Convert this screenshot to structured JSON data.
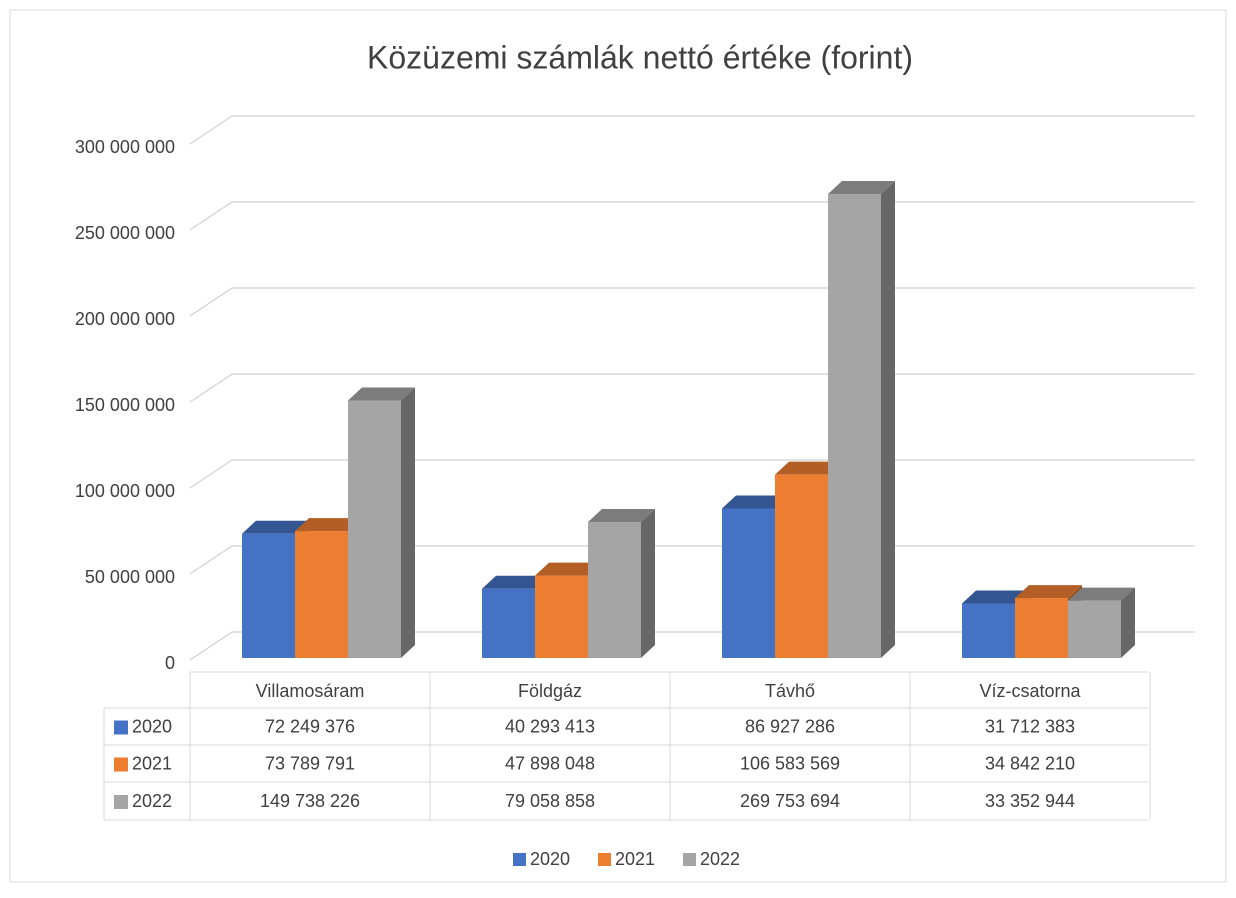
{
  "chart_data": {
    "type": "bar3d",
    "title": "Közüzemi számlák nettó értéke (forint)",
    "categories": [
      "Villamosáram",
      "Földgáz",
      "Távhő",
      "Víz-csatorna"
    ],
    "series": [
      {
        "name": "2020",
        "color": "#4472c4",
        "values": [
          72249376,
          40293413,
          86927286,
          31712383
        ],
        "value_labels": [
          "72 249 376",
          "40 293 413",
          "86 927 286",
          "31 712 383"
        ]
      },
      {
        "name": "2021",
        "color": "#ed7d31",
        "values": [
          73789791,
          47898048,
          106583569,
          34842210
        ],
        "value_labels": [
          "73 789 791",
          "47 898 048",
          "106 583 569",
          "34 842 210"
        ]
      },
      {
        "name": "2022",
        "color": "#a5a5a5",
        "values": [
          149738226,
          79058858,
          269753694,
          33352944
        ],
        "value_labels": [
          "149 738 226",
          "79 058 858",
          "269 753 694",
          "33 352 944"
        ]
      }
    ],
    "ylim": [
      0,
      300000000
    ],
    "yticks": [
      0,
      {
        "value": 50000000,
        "label": "50 000 000"
      },
      {
        "value": 100000000,
        "label": "100 000 000"
      },
      {
        "value": 150000000,
        "label": "150 000 000"
      },
      {
        "value": 200000000,
        "label": "200 000 000"
      },
      {
        "value": 250000000,
        "label": "250 000 000"
      },
      {
        "value": 300000000,
        "label": "300 000 000"
      }
    ],
    "grid": true,
    "data_table": true,
    "legend": "bottom"
  }
}
